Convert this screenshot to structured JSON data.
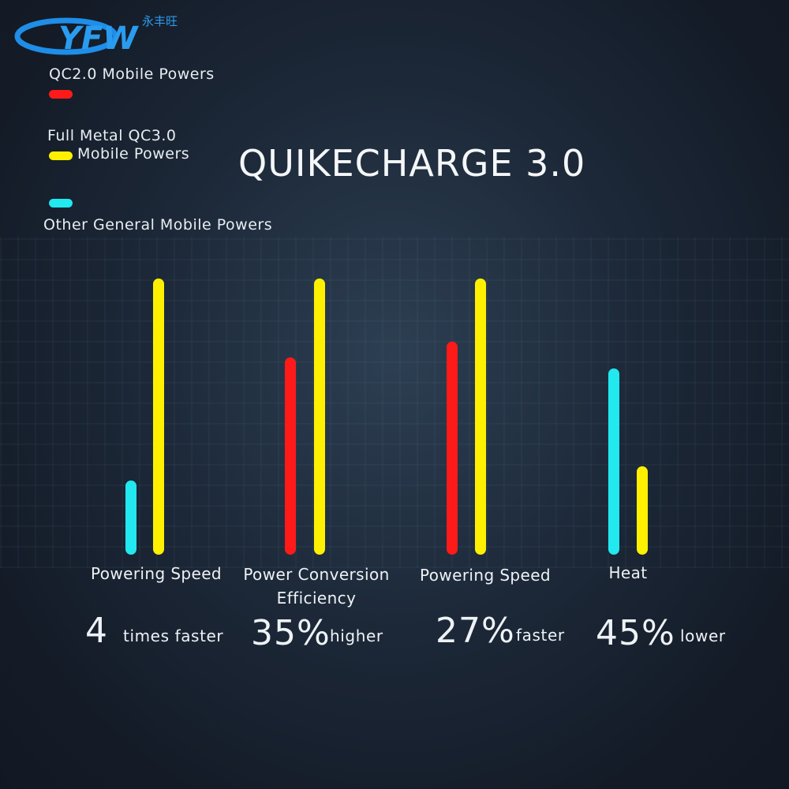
{
  "logo": {
    "text": "YFW",
    "chinese": "永丰旺"
  },
  "legend": [
    {
      "label": "QC2.0 Mobile Powers"
    },
    {
      "label_line1": "Full Metal QC3.0",
      "label_line2": "Mobile Powers"
    },
    {
      "label": "Other General Mobile Powers"
    }
  ],
  "title": "QUIKECHARGE 3.0",
  "groups": [
    {
      "label": "Powering Speed",
      "figure": "4",
      "suffix": "times faster"
    },
    {
      "label_line1": "Power Conversion",
      "label_line2": "Efficiency",
      "figure": "35%",
      "suffix": "higher"
    },
    {
      "label": "Powering Speed",
      "figure": "27%",
      "suffix": "faster"
    },
    {
      "label": "Heat",
      "figure": "45%",
      "suffix": "lower"
    }
  ]
}
